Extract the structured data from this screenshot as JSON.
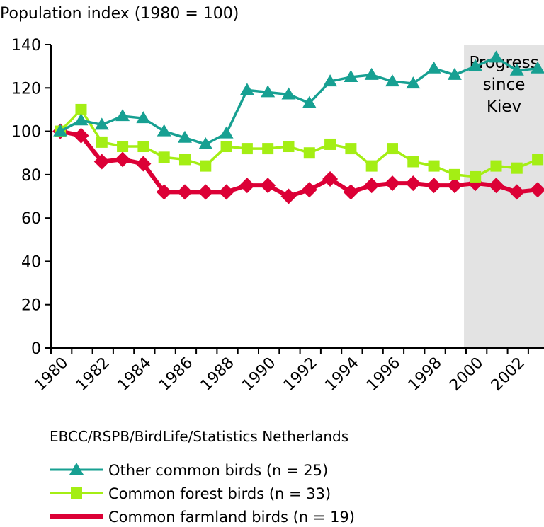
{
  "chart_data": {
    "type": "line",
    "title": "Population index (1980 = 100)",
    "xlabel": "",
    "ylabel": "Population index (1980 = 100)",
    "ylim": [
      0,
      140
    ],
    "yticks": [
      0,
      20,
      40,
      60,
      80,
      100,
      120,
      140
    ],
    "x": [
      1980,
      1981,
      1982,
      1983,
      1984,
      1985,
      1986,
      1987,
      1988,
      1989,
      1990,
      1991,
      1992,
      1993,
      1994,
      1995,
      1996,
      1997,
      1998,
      1999,
      2000,
      2001,
      2002,
      2003
    ],
    "xtick_labels": [
      "1980",
      "1982",
      "1984",
      "1986",
      "1988",
      "1990",
      "1992",
      "1994",
      "1996",
      "1998",
      "2000",
      "2002"
    ],
    "grid": false,
    "annotation": {
      "text": [
        "Progress",
        "since",
        "Kiev"
      ],
      "from_year": 2000,
      "color": "#e3e3e3"
    },
    "source": "EBCC/RSPB/BirdLife/Statistics Netherlands",
    "series": [
      {
        "name": "Other common birds (n = 25)",
        "color": "#17a092",
        "marker": "triangle",
        "values": [
          100,
          105,
          103,
          107,
          106,
          100,
          97,
          94,
          99,
          119,
          118,
          117,
          113,
          123,
          125,
          126,
          123,
          122,
          129,
          126,
          130,
          134,
          128,
          129
        ]
      },
      {
        "name": "Common forest birds (n = 33)",
        "color": "#a4ee14",
        "marker": "square",
        "values": [
          100,
          110,
          95,
          93,
          93,
          88,
          87,
          84,
          93,
          92,
          92,
          93,
          90,
          94,
          92,
          84,
          92,
          86,
          84,
          80,
          79,
          84,
          83,
          87
        ]
      },
      {
        "name": "Common farmland birds (n = 19)",
        "color": "#dc0036",
        "marker": "diamond",
        "values": [
          100,
          98,
          86,
          87,
          85,
          72,
          72,
          72,
          72,
          75,
          75,
          70,
          73,
          78,
          72,
          75,
          76,
          76,
          75,
          75,
          76,
          75,
          72,
          73
        ]
      }
    ]
  }
}
